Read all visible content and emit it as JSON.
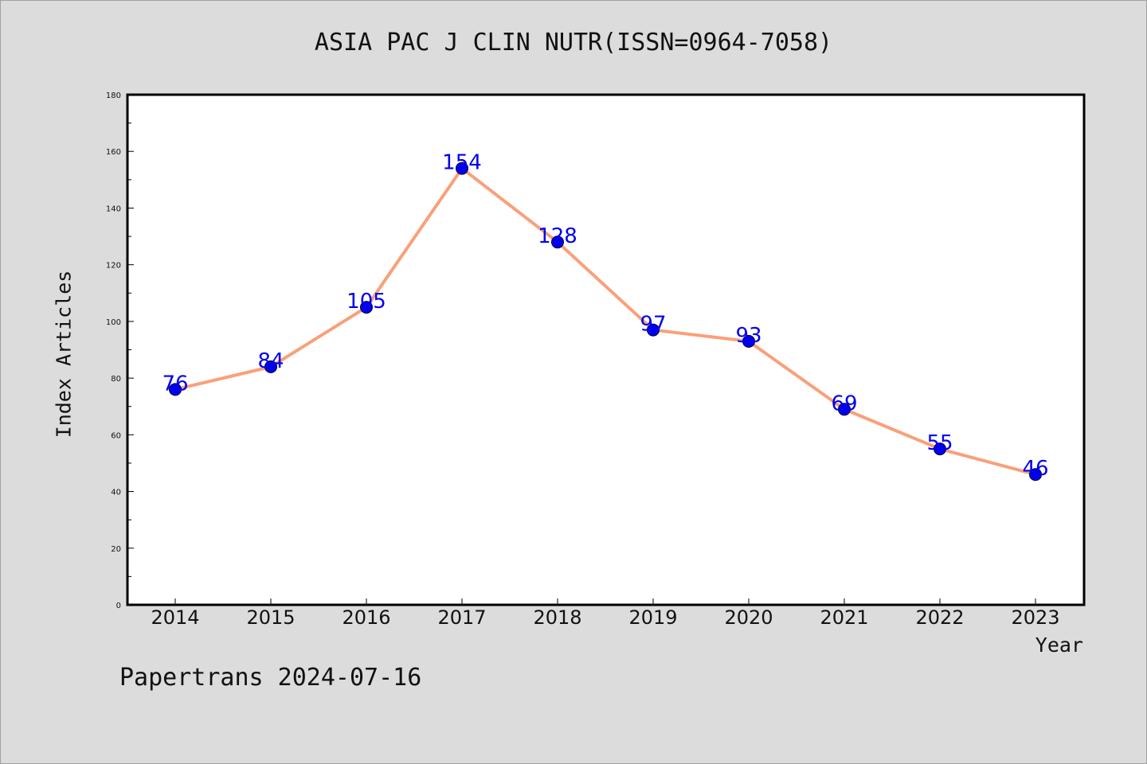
{
  "title": "ASIA PAC J CLIN NUTR(ISSN=0964-7058)",
  "footer": "Papertrans 2024-07-16",
  "chart_data": {
    "type": "line",
    "title": "ASIA PAC J CLIN NUTR(ISSN=0964-7058)",
    "xlabel": "Year",
    "ylabel": "Index Articles",
    "categories": [
      "2014",
      "2015",
      "2016",
      "2017",
      "2018",
      "2019",
      "2020",
      "2021",
      "2022",
      "2023"
    ],
    "series": [
      {
        "values": [
          76,
          84,
          105,
          154,
          128,
          97,
          93,
          69,
          55,
          46
        ]
      }
    ],
    "ylim": [
      0,
      180
    ],
    "yticks": [
      0,
      20,
      40,
      60,
      80,
      100,
      120,
      140,
      160,
      180
    ],
    "grid": false,
    "line_color": "#f9a07a",
    "marker_color": "#0000ee",
    "label_color": "#0000ee",
    "plot_background": "#ffffff",
    "page_background": "#dcdcdc"
  }
}
